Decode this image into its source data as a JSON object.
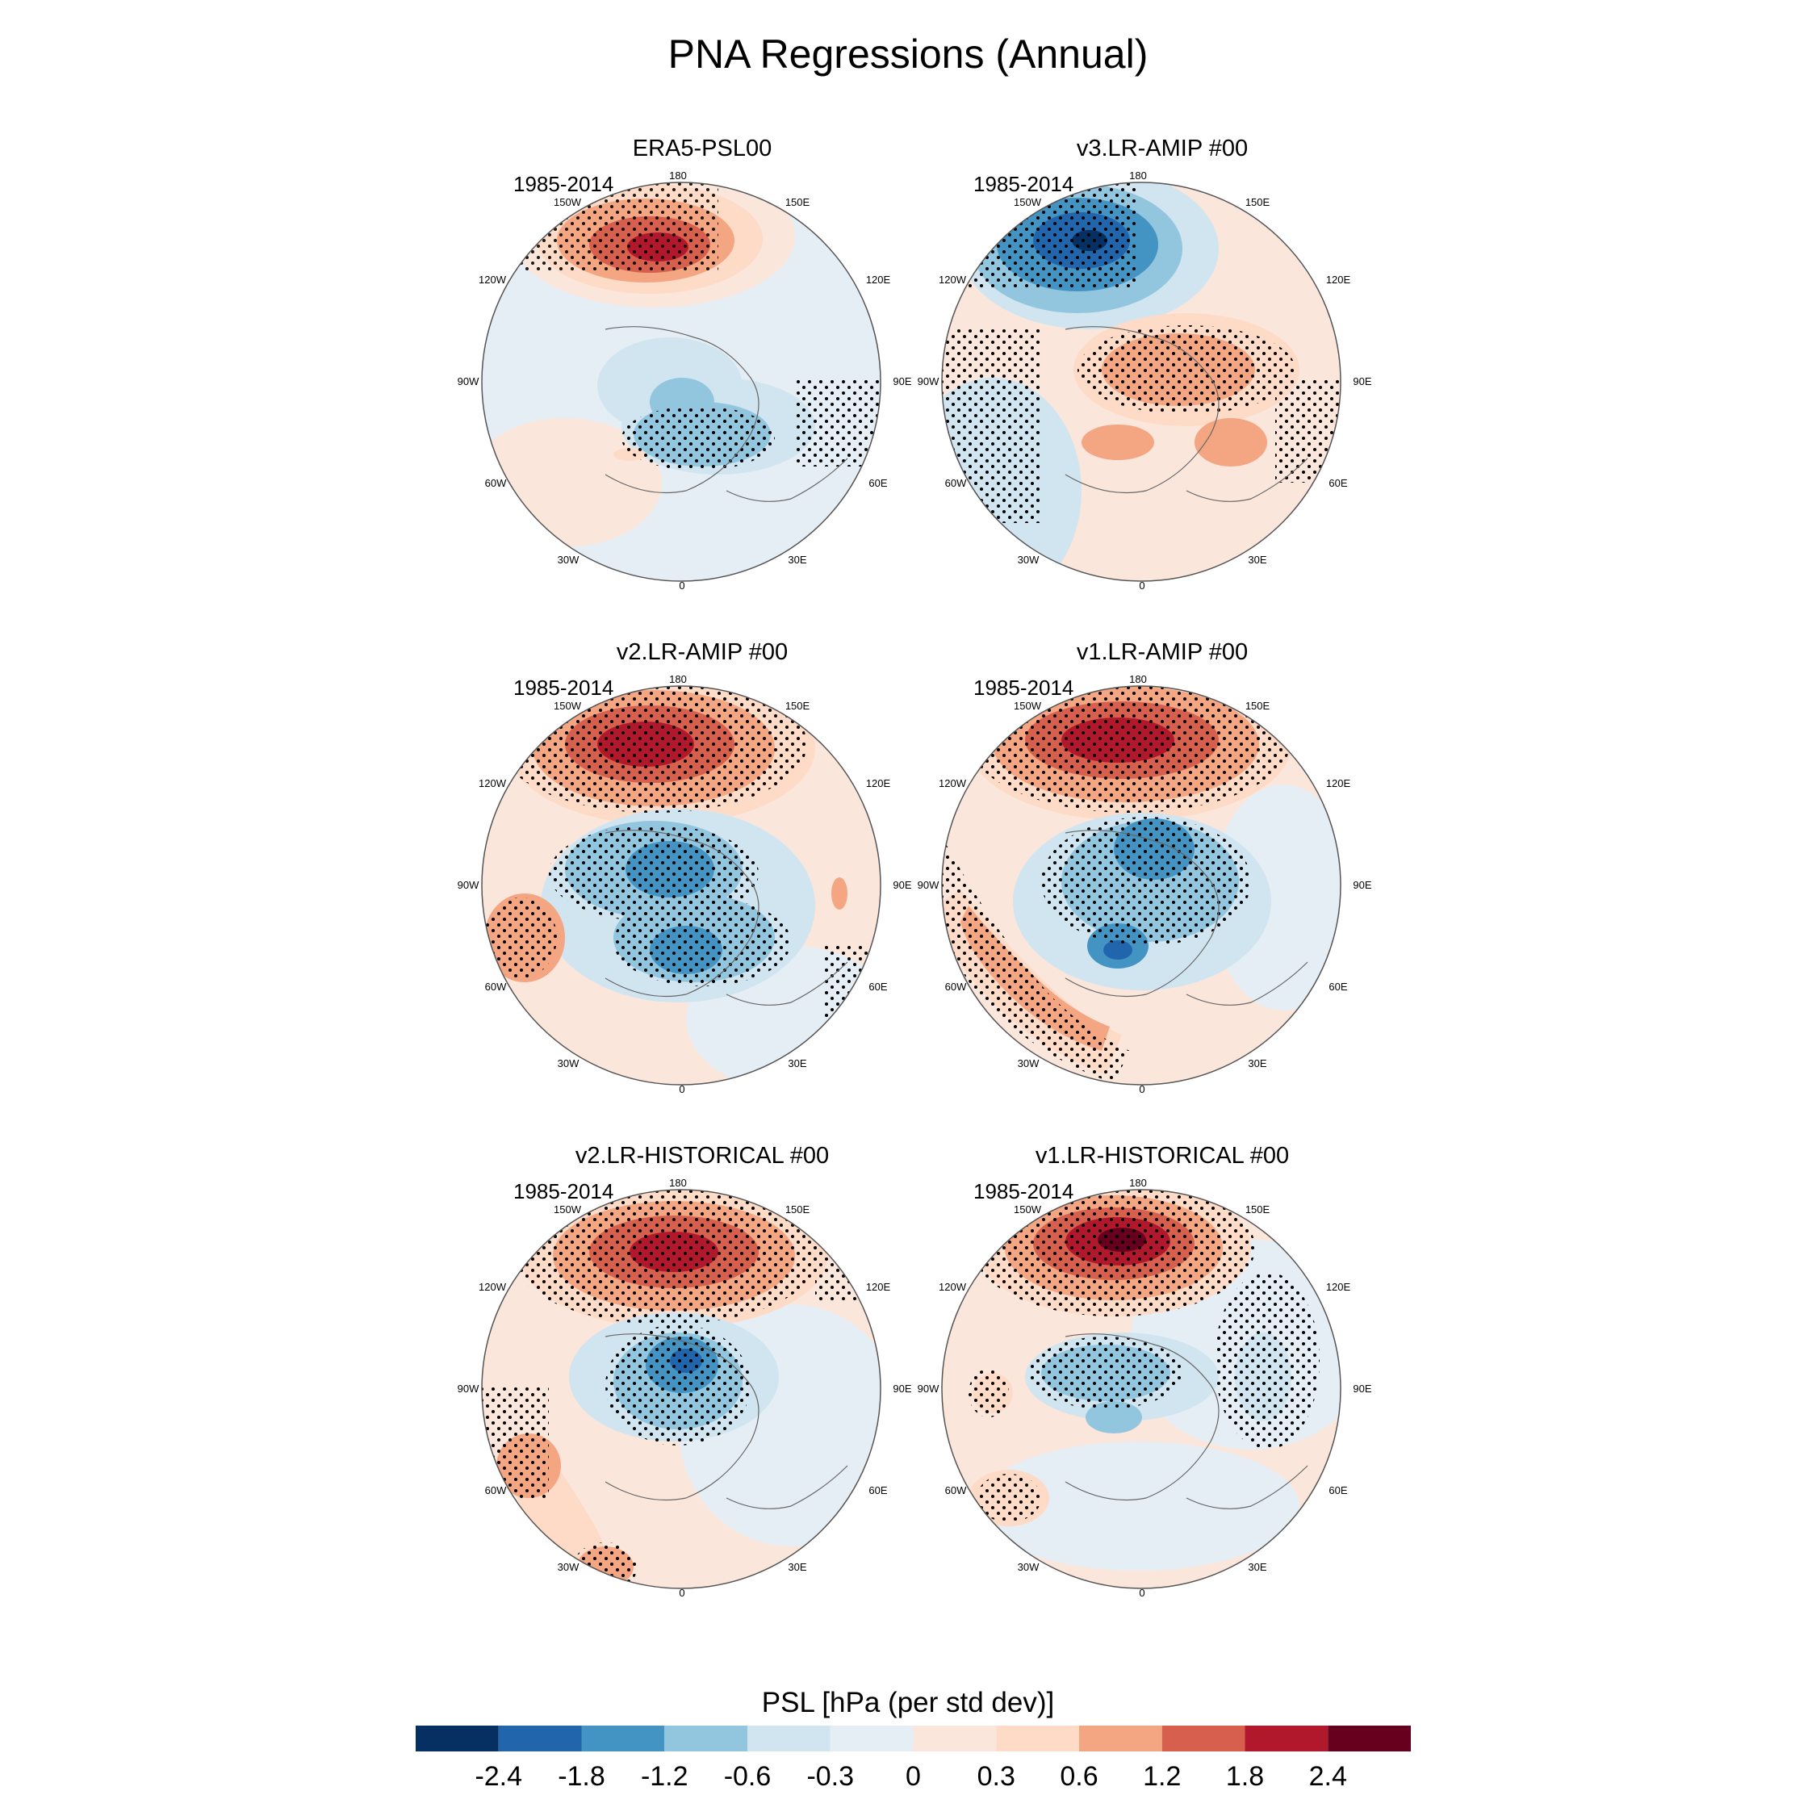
{
  "title": "PNA Regressions (Annual)",
  "panels": [
    {
      "label": "ERA5-PSL00",
      "period": "1985-2014"
    },
    {
      "label": "v3.LR-AMIP  #00",
      "period": "1985-2014"
    },
    {
      "label": "v2.LR-AMIP  #00",
      "period": "1985-2014"
    },
    {
      "label": "v1.LR-AMIP  #00",
      "period": "1985-2014"
    },
    {
      "label": "v2.LR-HISTORICAL  #00",
      "period": "1985-2014"
    },
    {
      "label": "v1.LR-HISTORICAL  #00",
      "period": "1985-2014"
    }
  ],
  "longitude_labels": [
    "180",
    "150E",
    "120E",
    "90E",
    "60E",
    "30E",
    "0",
    "30W",
    "60W",
    "90W",
    "120W",
    "150W"
  ],
  "colorbar": {
    "title": "PSL [hPa (per std dev)]",
    "ticks": [
      "-2.4",
      "-1.8",
      "-1.2",
      "-0.6",
      "-0.3",
      "0",
      "0.3",
      "0.6",
      "1.2",
      "1.8",
      "2.4"
    ],
    "colors": [
      "#053061",
      "#2166ac",
      "#4393c3",
      "#92c5de",
      "#d1e5f0",
      "#e6eef5",
      "#fbe6dc",
      "#fddbc7",
      "#f4a582",
      "#d6604d",
      "#b2182b",
      "#67001f"
    ]
  },
  "chart_data": {
    "type": "map",
    "projection": "north polar stereographic",
    "variable": "PSL",
    "units": "hPa (per std dev)",
    "levels": [
      -2.4,
      -1.8,
      -1.2,
      -0.6,
      -0.3,
      0,
      0.3,
      0.6,
      1.2,
      1.8,
      2.4
    ],
    "stippling": "statistically significant regions",
    "centers_of_action": [
      {
        "panel": "ERA5-PSL00",
        "north_pacific_max": 2.4,
        "arctic_min": -1.2
      },
      {
        "panel": "v3.LR-AMIP  #00",
        "north_pacific_min": -2.4,
        "arctic_max": 1.2
      },
      {
        "panel": "v2.LR-AMIP  #00",
        "north_pacific_max": 2.4,
        "arctic_min": -1.8
      },
      {
        "panel": "v1.LR-AMIP  #00",
        "north_pacific_max": 2.4,
        "arctic_min": -1.8
      },
      {
        "panel": "v2.LR-HISTORICAL  #00",
        "north_pacific_max": 2.4,
        "arctic_min": -2.4
      },
      {
        "panel": "v1.LR-HISTORICAL  #00",
        "north_pacific_max": 2.4,
        "arctic_min": -1.2
      }
    ]
  }
}
